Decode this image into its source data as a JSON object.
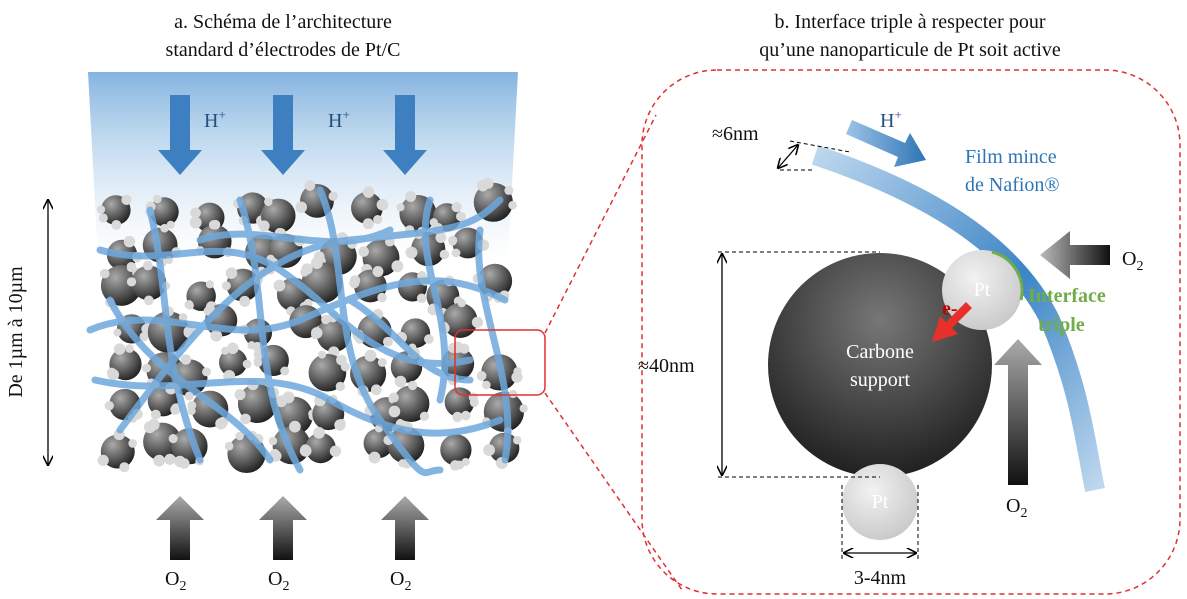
{
  "panel_a": {
    "title": [
      "a. Schéma de l’architecture",
      "standard d’électrodes de Pt/C"
    ],
    "proton_labels": [
      {
        "base": "H",
        "sup": "+"
      },
      {
        "base": "H",
        "sup": "+"
      }
    ],
    "thickness_label": "De 1µm à 10µm",
    "oxygen_labels": [
      {
        "base": "O",
        "sub": "2"
      },
      {
        "base": "O",
        "sub": "2"
      },
      {
        "base": "O",
        "sub": "2"
      }
    ]
  },
  "panel_b": {
    "title": [
      "b. Interface triple à respecter pour",
      "qu’une nanoparticule de Pt soit active"
    ],
    "film_thickness_label": "≈6nm",
    "proton_label": {
      "base": "H",
      "sup": "+"
    },
    "film_label": [
      "Film mince",
      "de Nafion®"
    ],
    "oxygen_labels": [
      {
        "base": "O",
        "sub": "2"
      },
      {
        "base": "O",
        "sub": "2"
      }
    ],
    "pt_labels": [
      "Pt",
      "Pt"
    ],
    "interface_label": [
      "Interface",
      "triple"
    ],
    "electron_label": "e-",
    "carbon_label": [
      "Carbone",
      "support"
    ],
    "carbon_size_label": "≈40nm",
    "pt_size_label": "3-4nm"
  }
}
